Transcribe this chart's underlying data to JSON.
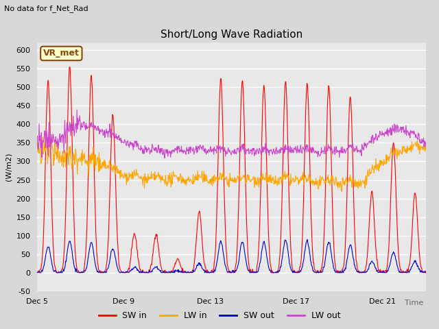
{
  "title": "Short/Long Wave Radiation",
  "subtitle": "No data for f_Net_Rad",
  "ylabel": "(W/m2)",
  "xlabel": "Time",
  "ylim": [
    -50,
    620
  ],
  "yticks": [
    -50,
    0,
    50,
    100,
    150,
    200,
    250,
    300,
    350,
    400,
    450,
    500,
    550,
    600
  ],
  "xtick_labels": [
    "Dec 5",
    "Dec 9",
    "Dec 13",
    "Dec 17",
    "Dec 21"
  ],
  "xtick_pos": [
    0,
    4,
    8,
    12,
    16
  ],
  "legend_labels": [
    "SW in",
    "LW in",
    "SW out",
    "LW out"
  ],
  "colors": {
    "SW_in": "#FF0000",
    "LW_in": "#FFA500",
    "SW_out": "#0000CD",
    "LW_out": "#CC44CC"
  },
  "annotation_box": "VR_met",
  "fig_bg_color": "#D8D8D8",
  "plot_bg_color": "#E8E8E8",
  "legend_bg_color": "#FFFFFF",
  "grid_color": "#FFFFFF",
  "n_days": 18,
  "pts_per_day": 48,
  "title_fontsize": 11,
  "tick_fontsize": 8,
  "label_fontsize": 8,
  "legend_fontsize": 9
}
